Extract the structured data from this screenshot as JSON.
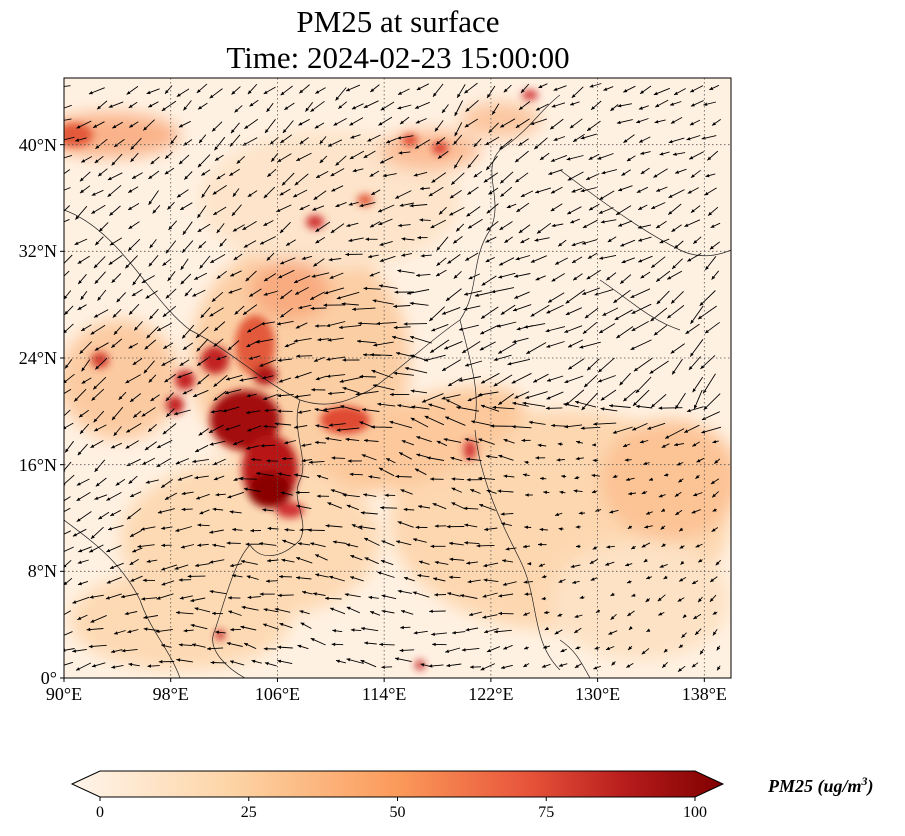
{
  "title": {
    "line1": "PM25 at surface",
    "line2": "Time: 2024-02-23 15:00:00"
  },
  "map": {
    "lon_range": [
      90,
      140
    ],
    "lat_range": [
      0,
      45
    ],
    "lat_ticks": [
      {
        "value": 0,
        "label": "0°"
      },
      {
        "value": 8,
        "label": "8°N"
      },
      {
        "value": 16,
        "label": "16°N"
      },
      {
        "value": 24,
        "label": "24°N"
      },
      {
        "value": 32,
        "label": "32°N"
      },
      {
        "value": 40,
        "label": "40°N"
      }
    ],
    "lon_ticks": [
      {
        "value": 90,
        "label": "90°E"
      },
      {
        "value": 98,
        "label": "98°E"
      },
      {
        "value": 106,
        "label": "106°E"
      },
      {
        "value": 114,
        "label": "114°E"
      },
      {
        "value": 122,
        "label": "122°E"
      },
      {
        "value": 130,
        "label": "130°E"
      },
      {
        "value": 138,
        "label": "138°E"
      }
    ],
    "grid_style": "dotted",
    "field": "PM25",
    "overlay": "wind vectors (arrows)"
  },
  "colorbar": {
    "label_main": "PM25 (ug/m",
    "label_exp": "3",
    "label_close": ")",
    "min": 0,
    "max": 100,
    "ticks": [
      0,
      25,
      50,
      75,
      100
    ],
    "colors": [
      "#fff5eb",
      "#fdd9b0",
      "#fdae6b",
      "#f16913",
      "#c4261d",
      "#7f0000"
    ],
    "extend": "both"
  }
}
